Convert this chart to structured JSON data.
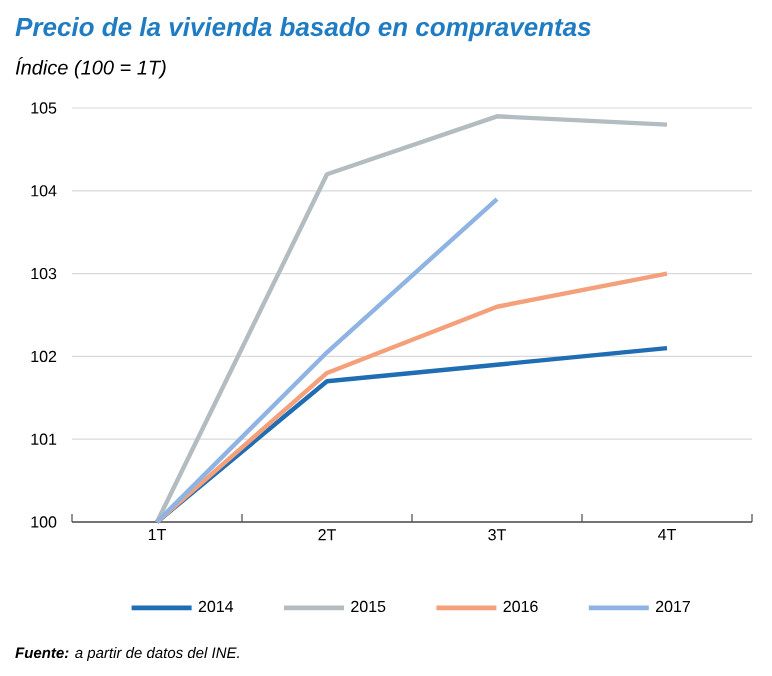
{
  "chart_data": {
    "type": "line",
    "title": "Precio de la vivienda basado en compraventas",
    "subtitle": "Índice (100 = 1T)",
    "annotations": [
      "**Fuente:** a partir de datos del INE."
    ],
    "categories": [
      "1T",
      "2T",
      "3T",
      "4T"
    ],
    "series": [
      {
        "name": "2014",
        "color": "#1f6db3",
        "values": [
          100,
          101.7,
          101.9,
          102.1
        ]
      },
      {
        "name": "2015",
        "color": "#b3bcc0",
        "values": [
          100,
          104.2,
          104.9,
          104.8
        ]
      },
      {
        "name": "2016",
        "color": "#f4a07a",
        "values": [
          100,
          101.8,
          102.6,
          103.0
        ]
      },
      {
        "name": "2017",
        "color": "#8fb4e3",
        "values": [
          100,
          102.05,
          103.9,
          null
        ]
      }
    ],
    "ylim": [
      100,
      105
    ],
    "yticks": [
      100,
      101,
      102,
      103,
      104,
      105
    ],
    "grid": "y",
    "legend": "bottom",
    "marker": "none",
    "line_style": "solid"
  }
}
